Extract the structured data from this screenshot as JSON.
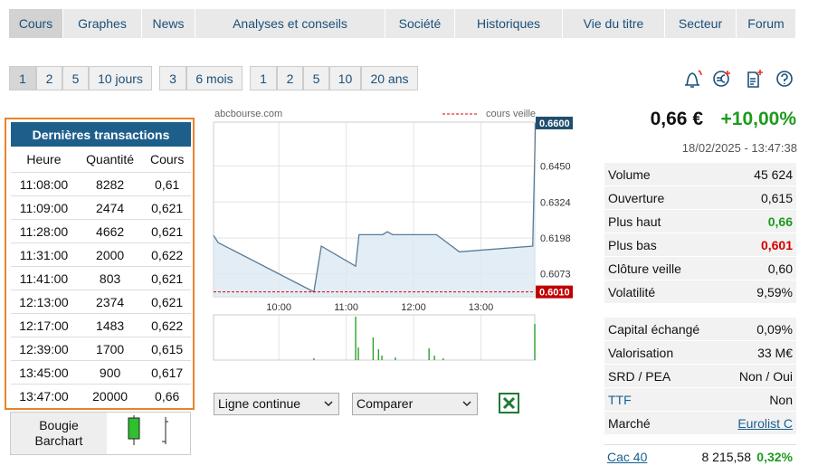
{
  "nav": [
    "Cours",
    "Graphes",
    "News",
    "Analyses et conseils",
    "Société",
    "Historiques",
    "Vie du titre",
    "Secteur",
    "Forum"
  ],
  "periods": [
    [
      "1",
      "2",
      "5",
      "10 jours"
    ],
    [
      "3",
      "6 mois"
    ],
    [
      "1",
      "2",
      "5",
      "10",
      "20 ans"
    ]
  ],
  "transactions": {
    "title": "Dernières transactions",
    "columns": [
      "Heure",
      "Quantité",
      "Cours"
    ],
    "rows": [
      [
        "11:08:00",
        "8282",
        "0,61"
      ],
      [
        "11:09:00",
        "2474",
        "0,621"
      ],
      [
        "11:28:00",
        "4662",
        "0,621"
      ],
      [
        "11:31:00",
        "2000",
        "0,622"
      ],
      [
        "11:41:00",
        "803",
        "0,621"
      ],
      [
        "12:13:00",
        "2374",
        "0,621"
      ],
      [
        "12:17:00",
        "1483",
        "0,622"
      ],
      [
        "12:39:00",
        "1700",
        "0,615"
      ],
      [
        "13:45:00",
        "900",
        "0,617"
      ],
      [
        "13:47:00",
        "20000",
        "0,66"
      ]
    ]
  },
  "chart_style": [
    "Bougie",
    "Barchart"
  ],
  "chart": {
    "source": "abcbourse.com",
    "legend": "cours veille",
    "xlim": [
      9.03,
      13.8
    ],
    "xticks": [
      {
        "value": 10,
        "label": "10:00"
      },
      {
        "value": 11,
        "label": "11:00"
      },
      {
        "value": 12,
        "label": "12:00"
      },
      {
        "value": 13,
        "label": "13:00"
      }
    ],
    "ylim": [
      0.5993,
      0.6603
    ],
    "yticks": [
      {
        "value": 0.645,
        "label": "0.6450"
      },
      {
        "value": 0.6324,
        "label": "0.6324"
      },
      {
        "value": 0.6198,
        "label": "0.6198"
      },
      {
        "value": 0.6073,
        "label": "0.6073"
      }
    ],
    "last": {
      "value": 0.66,
      "label": "0.6600"
    },
    "prev_close": {
      "value": 0.601,
      "label": "0.6010"
    },
    "x": [
      9.03,
      9.1,
      10.52,
      10.63,
      11.14,
      11.19,
      11.54,
      11.61,
      11.69,
      12.34,
      12.68,
      13.77,
      13.81
    ],
    "values": [
      0.6207,
      0.6182,
      0.601,
      0.617,
      0.61,
      0.621,
      0.621,
      0.622,
      0.621,
      0.621,
      0.615,
      0.617,
      0.66
    ],
    "volume": {
      "ylim": [
        0,
        25000
      ],
      "x": [
        10.52,
        11.14,
        11.18,
        11.4,
        11.48,
        11.53,
        11.73,
        12.23,
        12.31,
        12.44,
        13.8
      ],
      "values": [
        1000,
        24000,
        7000,
        12500,
        6000,
        2500,
        1500,
        6500,
        2500,
        1000,
        20000
      ]
    }
  },
  "controls": [
    "Ligne continue",
    "Comparer"
  ],
  "quote": {
    "price": "0,66 €",
    "change": "+10,00%",
    "time": "18/02/2025 - 13:47:38"
  },
  "stats": [
    [
      {
        "label": "Volume",
        "value": "45 624"
      },
      {
        "label": "Ouverture",
        "value": "0,615"
      },
      {
        "label": "Plus haut",
        "value": "0,66",
        "color": "#1e9a1e"
      },
      {
        "label": "Plus bas",
        "value": "0,601",
        "color": "#d40000"
      },
      {
        "label": "Clôture veille",
        "value": "0,60"
      },
      {
        "label": "Volatilité",
        "value": "9,59%"
      }
    ],
    [
      {
        "label": "Capital échangé",
        "value": "0,09%"
      },
      {
        "label": "Valorisation",
        "value": "33 M€"
      },
      {
        "label": "SRD / PEA",
        "value": "Non / Oui"
      },
      {
        "label": "TTF",
        "value": "Non",
        "label_color": "#1a5f8f"
      },
      {
        "label": "Marché",
        "value": "Eurolist C",
        "value_link": true
      }
    ]
  ],
  "index": {
    "name": "Cac 40",
    "value": "8 215,58",
    "change": "0,32%"
  }
}
